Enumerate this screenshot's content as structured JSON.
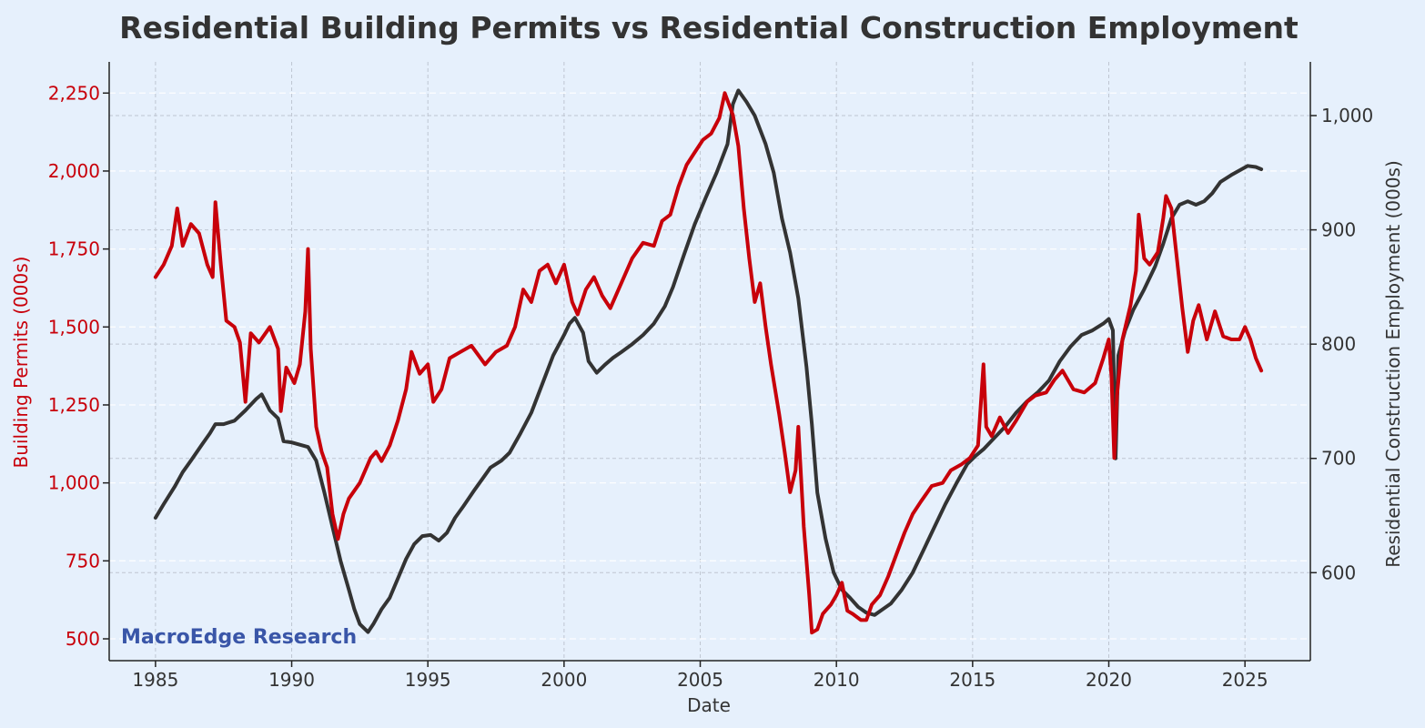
{
  "chart_data": {
    "type": "line",
    "title": "Residential Building Permits vs Residential Construction Employment",
    "xlabel": "Date",
    "ylabel_left": "Building Permits (000s)",
    "ylabel_right": "Residential Construction Employment (000s)",
    "watermark": "MacroEdge Research",
    "grid": true,
    "legend": "none",
    "xlim": [
      1983.3,
      2027.4
    ],
    "ylim_left": [
      430,
      2350
    ],
    "ylim_right": [
      523,
      1047
    ],
    "x_ticks": [
      {
        "value": 1985,
        "label": "1985"
      },
      {
        "value": 1990,
        "label": "1990"
      },
      {
        "value": 1995,
        "label": "1995"
      },
      {
        "value": 2000,
        "label": "2000"
      },
      {
        "value": 2005,
        "label": "2005"
      },
      {
        "value": 2010,
        "label": "2010"
      },
      {
        "value": 2015,
        "label": "2015"
      },
      {
        "value": 2020,
        "label": "2020"
      },
      {
        "value": 2025,
        "label": "2025"
      }
    ],
    "y_ticks_left": [
      {
        "value": 500,
        "label": "500"
      },
      {
        "value": 750,
        "label": "750"
      },
      {
        "value": 1000,
        "label": "1,000"
      },
      {
        "value": 1250,
        "label": "1,250"
      },
      {
        "value": 1500,
        "label": "1,500"
      },
      {
        "value": 1750,
        "label": "1,750"
      },
      {
        "value": 2000,
        "label": "2,000"
      },
      {
        "value": 2250,
        "label": "2,250"
      }
    ],
    "y_ticks_right": [
      {
        "value": 600,
        "label": "600"
      },
      {
        "value": 700,
        "label": "700"
      },
      {
        "value": 800,
        "label": "800"
      },
      {
        "value": 900,
        "label": "900"
      },
      {
        "value": 1000,
        "label": "1,000"
      }
    ],
    "series": [
      {
        "axis": "left",
        "color": "#c8000a",
        "points": [
          [
            1985.0,
            1660
          ],
          [
            1985.3,
            1700
          ],
          [
            1985.6,
            1760
          ],
          [
            1985.8,
            1880
          ],
          [
            1986.0,
            1760
          ],
          [
            1986.3,
            1830
          ],
          [
            1986.6,
            1800
          ],
          [
            1986.9,
            1700
          ],
          [
            1987.1,
            1660
          ],
          [
            1987.2,
            1900
          ],
          [
            1987.4,
            1700
          ],
          [
            1987.6,
            1520
          ],
          [
            1987.9,
            1500
          ],
          [
            1988.1,
            1450
          ],
          [
            1988.3,
            1260
          ],
          [
            1988.5,
            1480
          ],
          [
            1988.8,
            1450
          ],
          [
            1989.2,
            1500
          ],
          [
            1989.5,
            1430
          ],
          [
            1989.6,
            1230
          ],
          [
            1989.8,
            1370
          ],
          [
            1990.1,
            1320
          ],
          [
            1990.3,
            1380
          ],
          [
            1990.5,
            1550
          ],
          [
            1990.6,
            1750
          ],
          [
            1990.7,
            1430
          ],
          [
            1990.9,
            1180
          ],
          [
            1991.1,
            1100
          ],
          [
            1991.3,
            1050
          ],
          [
            1991.5,
            900
          ],
          [
            1991.7,
            820
          ],
          [
            1991.9,
            900
          ],
          [
            1992.1,
            950
          ],
          [
            1992.5,
            1000
          ],
          [
            1992.9,
            1080
          ],
          [
            1993.1,
            1100
          ],
          [
            1993.3,
            1070
          ],
          [
            1993.6,
            1120
          ],
          [
            1993.9,
            1200
          ],
          [
            1994.2,
            1300
          ],
          [
            1994.4,
            1420
          ],
          [
            1994.7,
            1350
          ],
          [
            1995.0,
            1380
          ],
          [
            1995.2,
            1260
          ],
          [
            1995.5,
            1300
          ],
          [
            1995.8,
            1400
          ],
          [
            1996.2,
            1420
          ],
          [
            1996.6,
            1440
          ],
          [
            1997.1,
            1380
          ],
          [
            1997.5,
            1420
          ],
          [
            1997.9,
            1440
          ],
          [
            1998.2,
            1500
          ],
          [
            1998.5,
            1620
          ],
          [
            1998.8,
            1580
          ],
          [
            1999.1,
            1680
          ],
          [
            1999.4,
            1700
          ],
          [
            1999.7,
            1640
          ],
          [
            2000.0,
            1700
          ],
          [
            2000.3,
            1580
          ],
          [
            2000.5,
            1540
          ],
          [
            2000.8,
            1620
          ],
          [
            2001.1,
            1660
          ],
          [
            2001.4,
            1600
          ],
          [
            2001.7,
            1560
          ],
          [
            2002.1,
            1640
          ],
          [
            2002.5,
            1720
          ],
          [
            2002.9,
            1770
          ],
          [
            2003.3,
            1760
          ],
          [
            2003.6,
            1840
          ],
          [
            2003.9,
            1860
          ],
          [
            2004.2,
            1950
          ],
          [
            2004.5,
            2020
          ],
          [
            2004.8,
            2060
          ],
          [
            2005.1,
            2100
          ],
          [
            2005.4,
            2120
          ],
          [
            2005.7,
            2170
          ],
          [
            2005.9,
            2250
          ],
          [
            2006.2,
            2180
          ],
          [
            2006.4,
            2080
          ],
          [
            2006.6,
            1880
          ],
          [
            2006.8,
            1720
          ],
          [
            2007.0,
            1580
          ],
          [
            2007.2,
            1640
          ],
          [
            2007.4,
            1500
          ],
          [
            2007.6,
            1380
          ],
          [
            2007.9,
            1220
          ],
          [
            2008.1,
            1100
          ],
          [
            2008.3,
            970
          ],
          [
            2008.5,
            1040
          ],
          [
            2008.6,
            1180
          ],
          [
            2008.8,
            860
          ],
          [
            2009.0,
            640
          ],
          [
            2009.1,
            520
          ],
          [
            2009.3,
            530
          ],
          [
            2009.5,
            580
          ],
          [
            2009.8,
            610
          ],
          [
            2010.0,
            640
          ],
          [
            2010.2,
            680
          ],
          [
            2010.4,
            590
          ],
          [
            2010.6,
            580
          ],
          [
            2010.9,
            560
          ],
          [
            2011.1,
            560
          ],
          [
            2011.3,
            610
          ],
          [
            2011.6,
            640
          ],
          [
            2011.9,
            700
          ],
          [
            2012.2,
            770
          ],
          [
            2012.5,
            840
          ],
          [
            2012.8,
            900
          ],
          [
            2013.1,
            940
          ],
          [
            2013.5,
            990
          ],
          [
            2013.9,
            1000
          ],
          [
            2014.2,
            1040
          ],
          [
            2014.6,
            1060
          ],
          [
            2014.9,
            1080
          ],
          [
            2015.2,
            1120
          ],
          [
            2015.4,
            1380
          ],
          [
            2015.5,
            1180
          ],
          [
            2015.7,
            1150
          ],
          [
            2016.0,
            1210
          ],
          [
            2016.3,
            1160
          ],
          [
            2016.6,
            1200
          ],
          [
            2017.0,
            1260
          ],
          [
            2017.3,
            1280
          ],
          [
            2017.7,
            1290
          ],
          [
            2018.0,
            1330
          ],
          [
            2018.3,
            1360
          ],
          [
            2018.7,
            1300
          ],
          [
            2019.1,
            1290
          ],
          [
            2019.5,
            1320
          ],
          [
            2019.8,
            1400
          ],
          [
            2020.0,
            1460
          ],
          [
            2020.1,
            1340
          ],
          [
            2020.2,
            1080
          ],
          [
            2020.3,
            1280
          ],
          [
            2020.5,
            1460
          ],
          [
            2020.8,
            1570
          ],
          [
            2021.0,
            1680
          ],
          [
            2021.1,
            1860
          ],
          [
            2021.3,
            1720
          ],
          [
            2021.5,
            1700
          ],
          [
            2021.8,
            1740
          ],
          [
            2022.0,
            1850
          ],
          [
            2022.1,
            1920
          ],
          [
            2022.3,
            1880
          ],
          [
            2022.5,
            1720
          ],
          [
            2022.7,
            1560
          ],
          [
            2022.9,
            1420
          ],
          [
            2023.1,
            1520
          ],
          [
            2023.3,
            1570
          ],
          [
            2023.6,
            1460
          ],
          [
            2023.9,
            1550
          ],
          [
            2024.2,
            1470
          ],
          [
            2024.5,
            1460
          ],
          [
            2024.8,
            1460
          ],
          [
            2025.0,
            1500
          ],
          [
            2025.2,
            1460
          ],
          [
            2025.4,
            1400
          ],
          [
            2025.6,
            1360
          ]
        ]
      },
      {
        "axis": "right",
        "color": "#333333",
        "points": [
          [
            1985.0,
            648
          ],
          [
            1985.3,
            660
          ],
          [
            1985.7,
            675
          ],
          [
            1986.0,
            688
          ],
          [
            1986.3,
            698
          ],
          [
            1986.7,
            712
          ],
          [
            1987.0,
            722
          ],
          [
            1987.2,
            730
          ],
          [
            1987.5,
            730
          ],
          [
            1987.9,
            733
          ],
          [
            1988.3,
            742
          ],
          [
            1988.7,
            752
          ],
          [
            1988.9,
            756
          ],
          [
            1989.2,
            742
          ],
          [
            1989.5,
            735
          ],
          [
            1989.7,
            715
          ],
          [
            1990.0,
            714
          ],
          [
            1990.3,
            712
          ],
          [
            1990.6,
            710
          ],
          [
            1990.9,
            698
          ],
          [
            1991.2,
            670
          ],
          [
            1991.5,
            640
          ],
          [
            1991.8,
            610
          ],
          [
            1992.1,
            585
          ],
          [
            1992.3,
            568
          ],
          [
            1992.5,
            555
          ],
          [
            1992.8,
            548
          ],
          [
            1993.0,
            555
          ],
          [
            1993.3,
            568
          ],
          [
            1993.6,
            578
          ],
          [
            1993.9,
            595
          ],
          [
            1994.2,
            612
          ],
          [
            1994.5,
            625
          ],
          [
            1994.8,
            632
          ],
          [
            1995.1,
            633
          ],
          [
            1995.4,
            628
          ],
          [
            1995.7,
            635
          ],
          [
            1996.0,
            648
          ],
          [
            1996.3,
            658
          ],
          [
            1996.7,
            672
          ],
          [
            1997.0,
            682
          ],
          [
            1997.3,
            692
          ],
          [
            1997.7,
            698
          ],
          [
            1998.0,
            705
          ],
          [
            1998.4,
            722
          ],
          [
            1998.8,
            740
          ],
          [
            1999.2,
            765
          ],
          [
            1999.6,
            790
          ],
          [
            2000.0,
            808
          ],
          [
            2000.2,
            818
          ],
          [
            2000.4,
            823
          ],
          [
            2000.7,
            810
          ],
          [
            2000.9,
            785
          ],
          [
            2001.2,
            775
          ],
          [
            2001.5,
            782
          ],
          [
            2001.8,
            788
          ],
          [
            2002.1,
            793
          ],
          [
            2002.5,
            800
          ],
          [
            2002.9,
            808
          ],
          [
            2003.3,
            818
          ],
          [
            2003.7,
            833
          ],
          [
            2004.0,
            850
          ],
          [
            2004.4,
            878
          ],
          [
            2004.8,
            905
          ],
          [
            2005.2,
            928
          ],
          [
            2005.6,
            950
          ],
          [
            2006.0,
            975
          ],
          [
            2006.2,
            1010
          ],
          [
            2006.4,
            1022
          ],
          [
            2006.7,
            1012
          ],
          [
            2007.0,
            1000
          ],
          [
            2007.4,
            975
          ],
          [
            2007.7,
            950
          ],
          [
            2008.0,
            910
          ],
          [
            2008.3,
            880
          ],
          [
            2008.6,
            840
          ],
          [
            2008.9,
            780
          ],
          [
            2009.1,
            730
          ],
          [
            2009.3,
            670
          ],
          [
            2009.6,
            630
          ],
          [
            2009.9,
            600
          ],
          [
            2010.2,
            585
          ],
          [
            2010.5,
            578
          ],
          [
            2010.8,
            570
          ],
          [
            2011.1,
            565
          ],
          [
            2011.4,
            563
          ],
          [
            2011.7,
            568
          ],
          [
            2012.0,
            573
          ],
          [
            2012.4,
            585
          ],
          [
            2012.8,
            600
          ],
          [
            2013.2,
            620
          ],
          [
            2013.6,
            640
          ],
          [
            2014.0,
            660
          ],
          [
            2014.4,
            678
          ],
          [
            2014.8,
            695
          ],
          [
            2015.1,
            702
          ],
          [
            2015.4,
            708
          ],
          [
            2015.8,
            718
          ],
          [
            2016.2,
            728
          ],
          [
            2016.6,
            740
          ],
          [
            2017.0,
            750
          ],
          [
            2017.4,
            758
          ],
          [
            2017.8,
            768
          ],
          [
            2018.2,
            785
          ],
          [
            2018.6,
            798
          ],
          [
            2019.0,
            808
          ],
          [
            2019.4,
            812
          ],
          [
            2019.8,
            818
          ],
          [
            2020.0,
            822
          ],
          [
            2020.15,
            812
          ],
          [
            2020.25,
            700
          ],
          [
            2020.35,
            790
          ],
          [
            2020.6,
            812
          ],
          [
            2020.9,
            830
          ],
          [
            2021.3,
            848
          ],
          [
            2021.7,
            868
          ],
          [
            2022.0,
            888
          ],
          [
            2022.3,
            910
          ],
          [
            2022.6,
            922
          ],
          [
            2022.9,
            925
          ],
          [
            2023.2,
            922
          ],
          [
            2023.5,
            925
          ],
          [
            2023.8,
            932
          ],
          [
            2024.1,
            942
          ],
          [
            2024.5,
            948
          ],
          [
            2024.8,
            952
          ],
          [
            2025.1,
            956
          ],
          [
            2025.4,
            955
          ],
          [
            2025.6,
            953
          ]
        ]
      }
    ]
  }
}
